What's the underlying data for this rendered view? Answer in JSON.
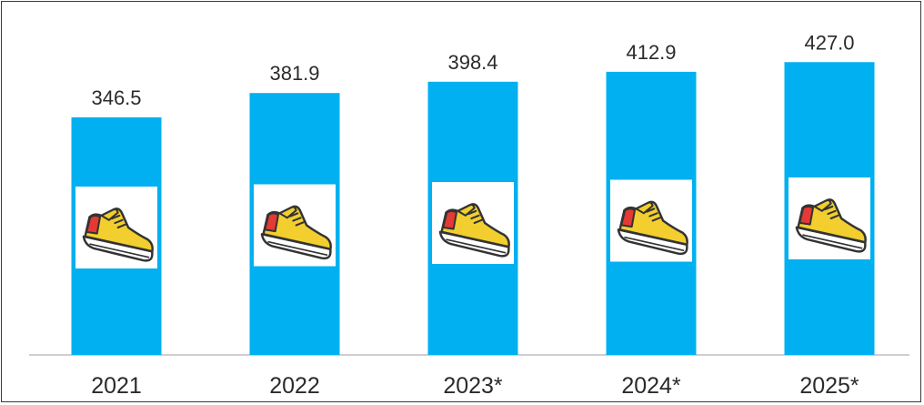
{
  "chart_data": {
    "type": "bar",
    "categories": [
      "2021",
      "2022",
      "2023*",
      "2024*",
      "2025*"
    ],
    "values": [
      346.5,
      381.9,
      398.4,
      412.9,
      427.0
    ],
    "value_labels": [
      "346.5",
      "381.9",
      "398.4",
      "412.9",
      "427.0"
    ],
    "title": "",
    "xlabel": "",
    "ylabel": "",
    "ylim": [
      0,
      440
    ],
    "grid": false,
    "legend": "none",
    "colors": {
      "bar": "#00b0f0",
      "icon_background": "#ffffff",
      "shoe_body": "#f2cf2e",
      "shoe_heel": "#e53935",
      "shoe_sole": "#ffffff",
      "outline": "#333333",
      "baseline": "#bfbfbf"
    },
    "icon": "sneaker-icon"
  }
}
